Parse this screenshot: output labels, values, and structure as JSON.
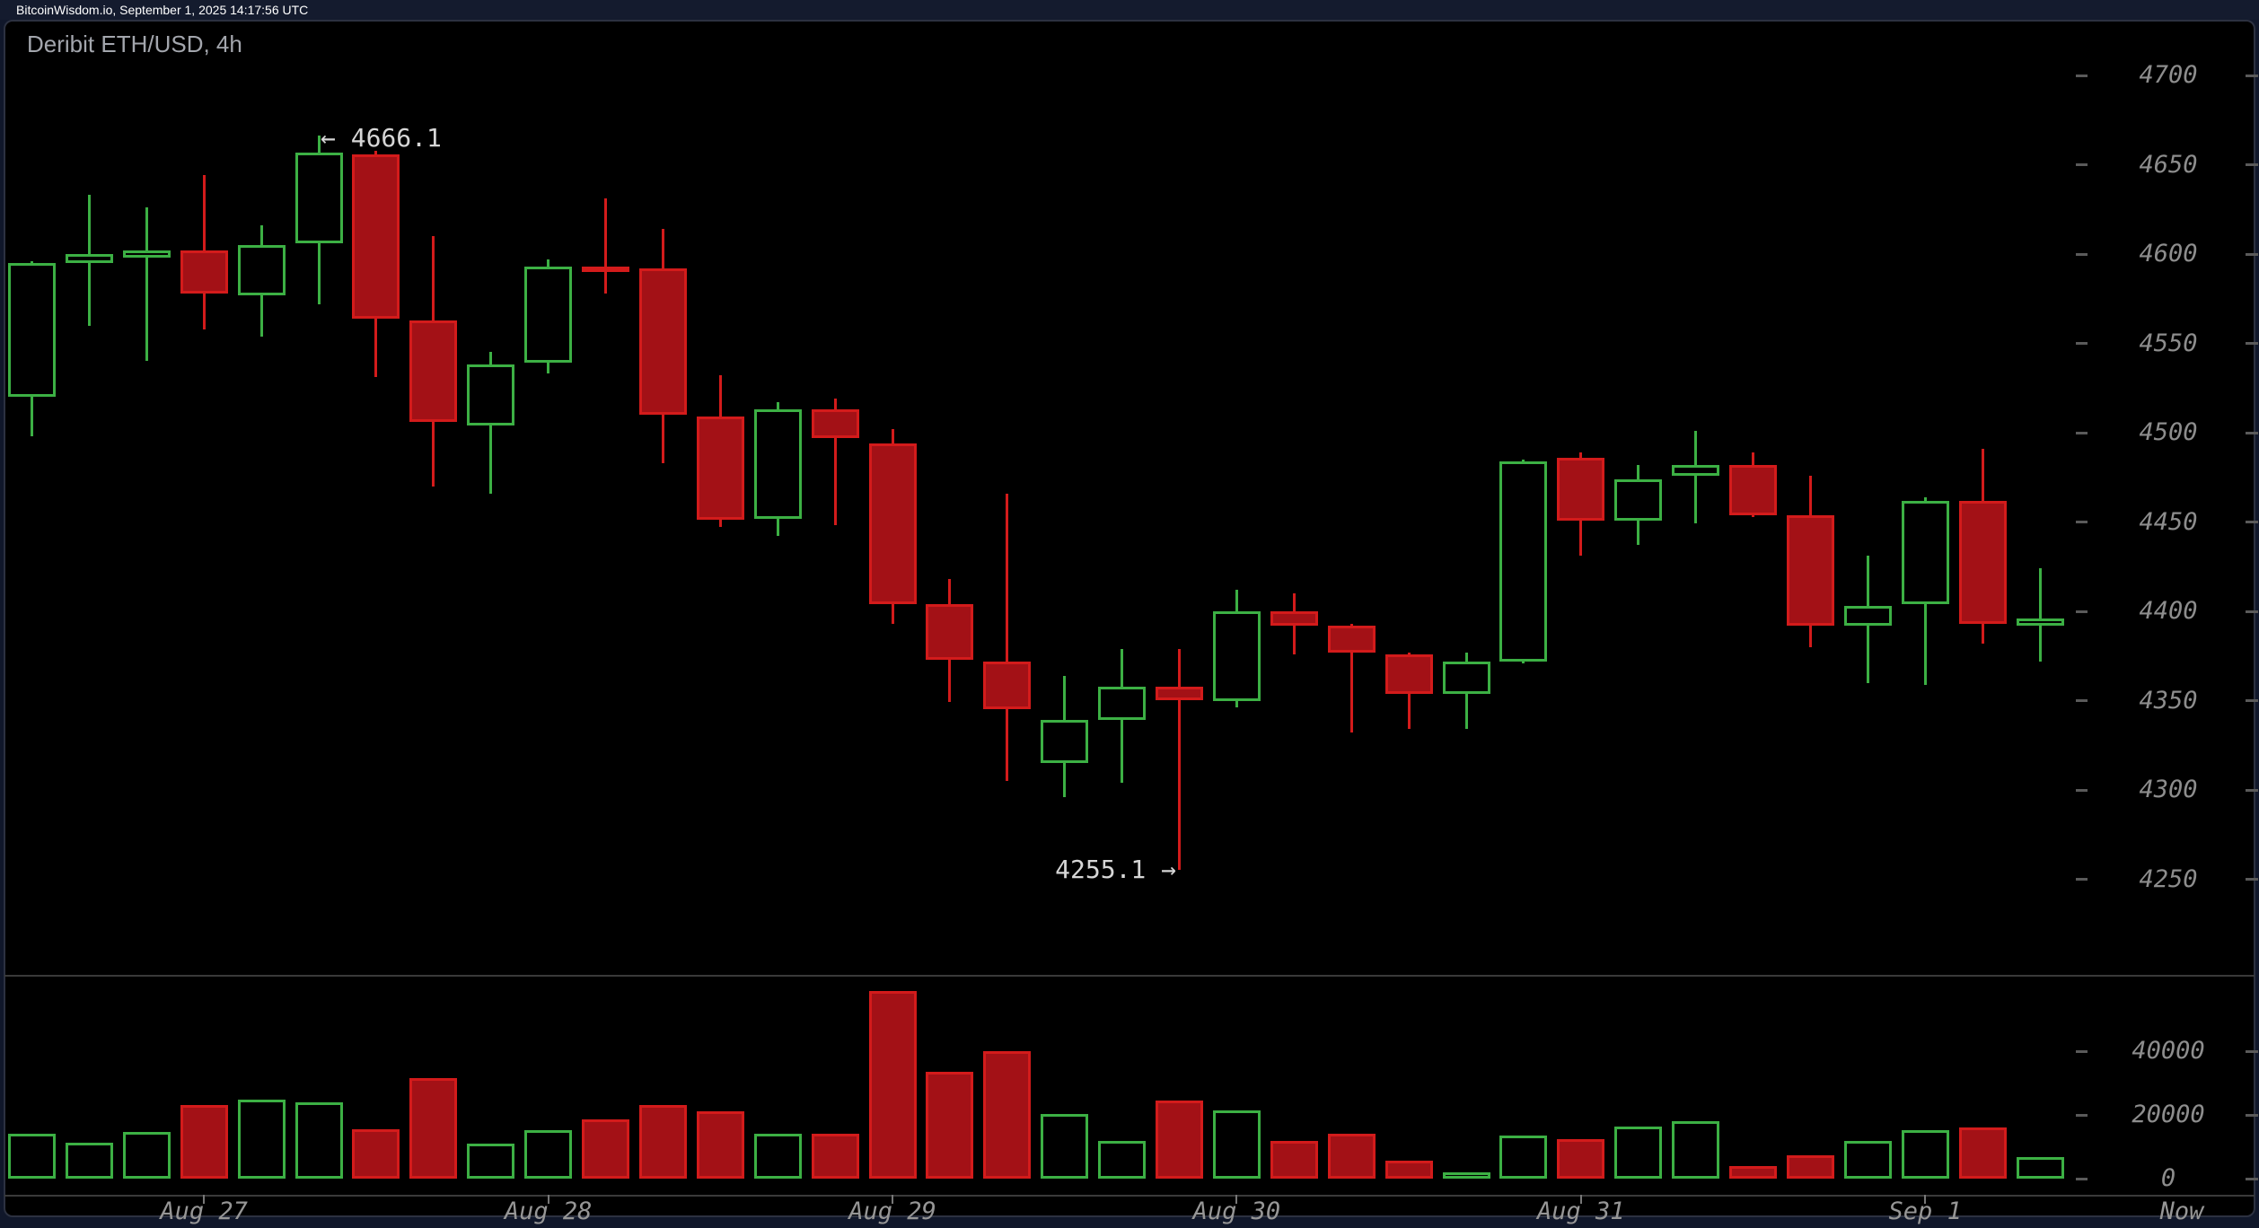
{
  "header": {
    "text": "BitcoinWisdom.io, September 1, 2025 14:17:56 UTC"
  },
  "chart": {
    "title": "Deribit ETH/USD, 4h",
    "high_annotation_text": "← 4666.1",
    "low_annotation_text": "4255.1 →",
    "now_label": "Now"
  },
  "colors": {
    "background": "#000000",
    "frame": "#141b2e",
    "up": "#3cb044",
    "down_fill": "#a31116",
    "down_border": "#d31b1b",
    "axis_text": "#8d8d8d",
    "annotation_text": "#d6d6d6"
  },
  "chart_data": {
    "type": "candlestick",
    "exchange": "Deribit",
    "pair": "ETH/USD",
    "interval": "4h",
    "title": "Deribit ETH/USD, 4h",
    "price_axis_ticks": [
      4700,
      4650,
      4600,
      4550,
      4500,
      4450,
      4400,
      4350,
      4300,
      4250
    ],
    "volume_axis_ticks": [
      40000,
      20000,
      0
    ],
    "price_range_shown": [
      4220,
      4730
    ],
    "grid": "off",
    "x_ticks": [
      {
        "label": "Aug 27",
        "candle_index": 3
      },
      {
        "label": "Aug 28",
        "candle_index": 9
      },
      {
        "label": "Aug 29",
        "candle_index": 15
      },
      {
        "label": "Aug 30",
        "candle_index": 21
      },
      {
        "label": "Aug 31",
        "candle_index": 27
      },
      {
        "label": "Sep 1",
        "candle_index": 33
      }
    ],
    "high_annotation": {
      "text": "← 4666.1",
      "value": 4666.1,
      "candle_index": 5
    },
    "low_annotation": {
      "text": "4255.1 →",
      "value": 4255.1,
      "candle_index": 20
    },
    "last_price": 4396,
    "candles": [
      {
        "time": "Aug 26 12:00",
        "open": 4520,
        "high": 4596,
        "low": 4498,
        "close": 4595,
        "volume": 14200
      },
      {
        "time": "Aug 26 16:00",
        "open": 4595,
        "high": 4633,
        "low": 4560,
        "close": 4600,
        "volume": 11200
      },
      {
        "time": "Aug 26 20:00",
        "open": 4598,
        "high": 4626,
        "low": 4540,
        "close": 4602,
        "volume": 14800
      },
      {
        "time": "Aug 27 00:00",
        "open": 4602,
        "high": 4644,
        "low": 4558,
        "close": 4578,
        "volume": 23200
      },
      {
        "time": "Aug 27 04:00",
        "open": 4577,
        "high": 4616,
        "low": 4554,
        "close": 4605,
        "volume": 24900
      },
      {
        "time": "Aug 27 08:00",
        "open": 4606,
        "high": 4666.1,
        "low": 4572,
        "close": 4657,
        "volume": 23900
      },
      {
        "time": "Aug 27 12:00",
        "open": 4656,
        "high": 4658,
        "low": 4531,
        "close": 4564,
        "volume": 15400
      },
      {
        "time": "Aug 27 16:00",
        "open": 4563,
        "high": 4610,
        "low": 4470,
        "close": 4506,
        "volume": 31600
      },
      {
        "time": "Aug 27 20:00",
        "open": 4504,
        "high": 4545,
        "low": 4466,
        "close": 4538,
        "volume": 10900
      },
      {
        "time": "Aug 28 00:00",
        "open": 4539,
        "high": 4597,
        "low": 4533,
        "close": 4593,
        "volume": 15200
      },
      {
        "time": "Aug 28 04:00",
        "open": 4593,
        "high": 4631,
        "low": 4578,
        "close": 4591,
        "volume": 18600
      },
      {
        "time": "Aug 28 08:00",
        "open": 4592,
        "high": 4614,
        "low": 4483,
        "close": 4510,
        "volume": 23200
      },
      {
        "time": "Aug 28 12:00",
        "open": 4509,
        "high": 4532,
        "low": 4447,
        "close": 4451,
        "volume": 21100
      },
      {
        "time": "Aug 28 16:00",
        "open": 4452,
        "high": 4517,
        "low": 4442,
        "close": 4513,
        "volume": 14200
      },
      {
        "time": "Aug 28 20:00",
        "open": 4513,
        "high": 4519,
        "low": 4448,
        "close": 4497,
        "volume": 14000
      },
      {
        "time": "Aug 29 00:00",
        "open": 4494,
        "high": 4502,
        "low": 4393,
        "close": 4404,
        "volume": 59000
      },
      {
        "time": "Aug 29 04:00",
        "open": 4404,
        "high": 4418,
        "low": 4349,
        "close": 4373,
        "volume": 33500
      },
      {
        "time": "Aug 29 08:00",
        "open": 4372,
        "high": 4466,
        "low": 4305,
        "close": 4345,
        "volume": 40100
      },
      {
        "time": "Aug 29 12:00",
        "open": 4315,
        "high": 4364,
        "low": 4296,
        "close": 4339,
        "volume": 20300
      },
      {
        "time": "Aug 29 16:00",
        "open": 4339,
        "high": 4379,
        "low": 4304,
        "close": 4358,
        "volume": 11900
      },
      {
        "time": "Aug 29 20:00",
        "open": 4358,
        "high": 4379,
        "low": 4255.1,
        "close": 4350,
        "volume": 24600
      },
      {
        "time": "Aug 30 00:00",
        "open": 4350,
        "high": 4412,
        "low": 4346,
        "close": 4400,
        "volume": 21600
      },
      {
        "time": "Aug 30 04:00",
        "open": 4400,
        "high": 4410,
        "low": 4376,
        "close": 4392,
        "volume": 11900
      },
      {
        "time": "Aug 30 08:00",
        "open": 4392,
        "high": 4393,
        "low": 4332,
        "close": 4377,
        "volume": 14200
      },
      {
        "time": "Aug 30 12:00",
        "open": 4376,
        "high": 4377,
        "low": 4334,
        "close": 4354,
        "volume": 5600
      },
      {
        "time": "Aug 30 16:00",
        "open": 4354,
        "high": 4377,
        "low": 4334,
        "close": 4372,
        "volume": 2000
      },
      {
        "time": "Aug 30 20:00",
        "open": 4372,
        "high": 4485,
        "low": 4371,
        "close": 4484,
        "volume": 13600
      },
      {
        "time": "Aug 31 00:00",
        "open": 4486,
        "high": 4489,
        "low": 4431,
        "close": 4451,
        "volume": 12300
      },
      {
        "time": "Aug 31 04:00",
        "open": 4451,
        "high": 4482,
        "low": 4437,
        "close": 4474,
        "volume": 16400
      },
      {
        "time": "Aug 31 08:00",
        "open": 4476,
        "high": 4501,
        "low": 4449,
        "close": 4482,
        "volume": 18100
      },
      {
        "time": "Aug 31 12:00",
        "open": 4482,
        "high": 4489,
        "low": 4453,
        "close": 4454,
        "volume": 4000
      },
      {
        "time": "Aug 31 16:00",
        "open": 4454,
        "high": 4476,
        "low": 4380,
        "close": 4392,
        "volume": 7400
      },
      {
        "time": "Aug 31 20:00",
        "open": 4392,
        "high": 4431,
        "low": 4360,
        "close": 4403,
        "volume": 11900
      },
      {
        "time": "Sep 1 00:00",
        "open": 4404,
        "high": 4464,
        "low": 4359,
        "close": 4462,
        "volume": 15300
      },
      {
        "time": "Sep 1 04:00",
        "open": 4462,
        "high": 4491,
        "low": 4382,
        "close": 4393,
        "volume": 16100
      },
      {
        "time": "Sep 1 08:00",
        "open": 4392,
        "high": 4424,
        "low": 4372,
        "close": 4396,
        "volume": 6700
      }
    ]
  }
}
